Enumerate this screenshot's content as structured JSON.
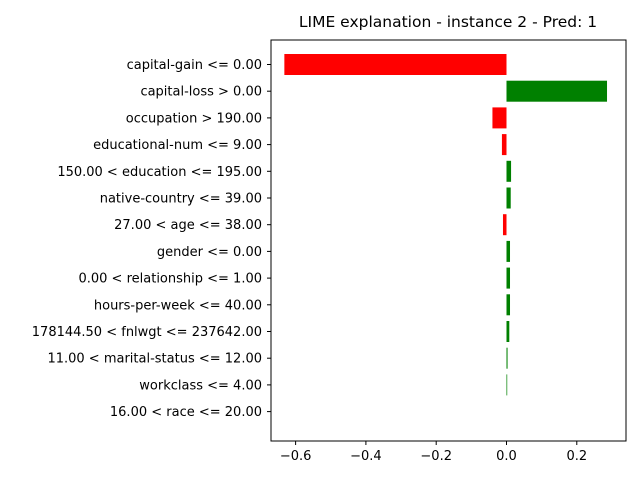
{
  "chart_data": {
    "type": "bar",
    "orientation": "horizontal",
    "title": "LIME explanation - instance 2 - Pred: 1",
    "xlabel": "",
    "ylabel": "",
    "xlim": [
      -0.67,
      0.34
    ],
    "xticks": [
      -0.6,
      -0.4,
      -0.2,
      0.0,
      0.2
    ],
    "xtick_labels": [
      "−0.6",
      "−0.4",
      "−0.2",
      "0.0",
      "0.2"
    ],
    "grid": false,
    "legend": "none",
    "colors": {
      "positive": "#008000",
      "negative": "#ff0000"
    },
    "categories": [
      "capital-gain <= 0.00",
      "capital-loss > 0.00",
      "occupation > 190.00",
      "educational-num <= 9.00",
      "150.00 < education <= 195.00",
      "native-country <= 39.00",
      "27.00 < age <= 38.00",
      "gender <= 0.00",
      "0.00 < relationship <= 1.00",
      "hours-per-week <= 40.00",
      "178144.50 < fnlwgt <= 237642.00",
      "11.00 < marital-status <= 12.00",
      "workclass <= 4.00",
      "16.00 < race <= 20.00"
    ],
    "values": [
      -0.632,
      0.286,
      -0.04,
      -0.013,
      0.013,
      0.012,
      -0.01,
      0.01,
      0.01,
      0.01,
      0.008,
      0.003,
      0.002,
      0.0
    ]
  }
}
